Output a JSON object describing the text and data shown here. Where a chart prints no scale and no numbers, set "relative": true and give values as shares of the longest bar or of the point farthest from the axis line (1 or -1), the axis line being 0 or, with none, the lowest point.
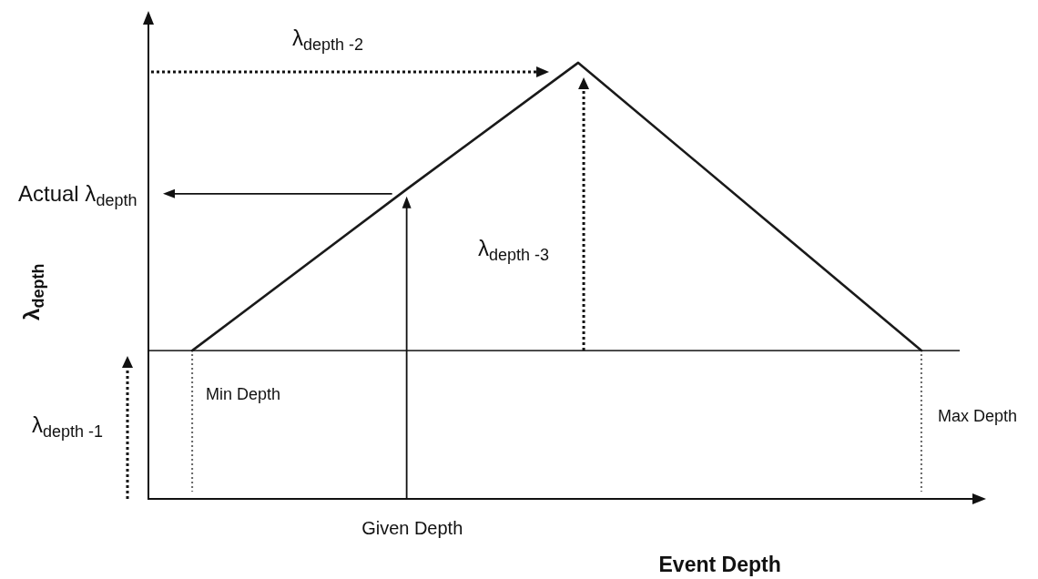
{
  "chart_data": {
    "type": "line",
    "xlabel": "Event Depth",
    "ylabel": "λ$_{depth}$",
    "categories": [
      null,
      null,
      null,
      null,
      null,
      null,
      null,
      null,
      null,
      null,
      null,
      null,
      null,
      null,
      null,
      null,
      null,
      null,
      null,
      null
    ],
    "series": [
      {
        "color": "#1a1a1a",
        "values": [
          null,
          0.34,
          null,
          null,
          null,
          null,
          0.71,
          null,
          null,
          null,
          1,
          null,
          null,
          null,
          null,
          null,
          null,
          null,
          0.34,
          null
        ]
      }
    ],
    "relative": true,
    "marker": "none",
    "ref_lines": [
      {
        "axis": "y",
        "value": 0.34,
        "label": "λ$_{depth -1}$",
        "color": "#333333"
      }
    ],
    "annotations": [
      "Actual λ$_{depth}$",
      "Given Depth",
      "λ$_{depth -2}$",
      "λ$_{depth -3}$",
      "Min Depth",
      "Max Depth"
    ]
  }
}
